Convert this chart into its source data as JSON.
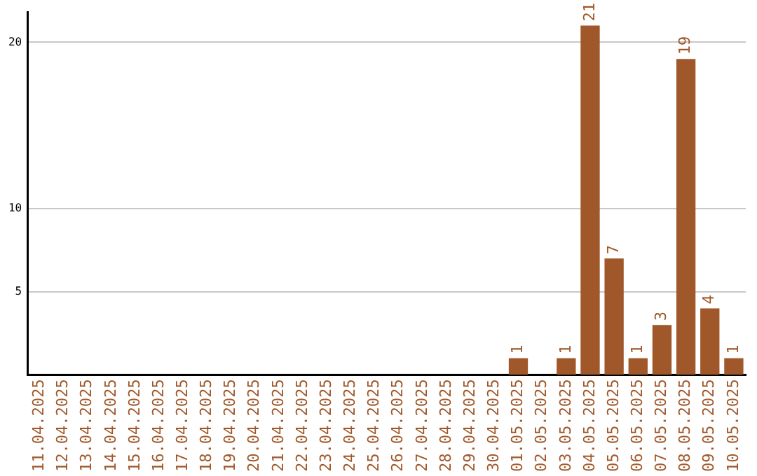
{
  "chart_data": {
    "type": "bar",
    "categories": [
      "11.04.2025",
      "12.04.2025",
      "13.04.2025",
      "14.04.2025",
      "15.04.2025",
      "16.04.2025",
      "17.04.2025",
      "18.04.2025",
      "19.04.2025",
      "20.04.2025",
      "21.04.2025",
      "22.04.2025",
      "23.04.2025",
      "24.04.2025",
      "25.04.2025",
      "26.04.2025",
      "27.04.2025",
      "28.04.2025",
      "29.04.2025",
      "30.04.2025",
      "01.05.2025",
      "02.05.2025",
      "03.05.2025",
      "04.05.2025",
      "05.05.2025",
      "06.05.2025",
      "07.05.2025",
      "08.05.2025",
      "09.05.2025",
      "10.05.2025"
    ],
    "values": [
      0,
      0,
      0,
      0,
      0,
      0,
      0,
      0,
      0,
      0,
      0,
      0,
      0,
      0,
      0,
      0,
      0,
      0,
      0,
      0,
      1,
      0,
      1,
      21,
      7,
      1,
      3,
      19,
      4,
      1
    ],
    "value_labels": [
      null,
      null,
      null,
      null,
      null,
      null,
      null,
      null,
      null,
      null,
      null,
      null,
      null,
      null,
      null,
      null,
      null,
      null,
      null,
      null,
      "1",
      null,
      "1",
      "21",
      "7",
      "1",
      "3",
      "19",
      "4",
      "1"
    ],
    "color": "#a0582a",
    "ylim": [
      0,
      21.8
    ],
    "yticks": [
      5,
      10,
      20
    ],
    "grid": "y",
    "legend": false
  }
}
